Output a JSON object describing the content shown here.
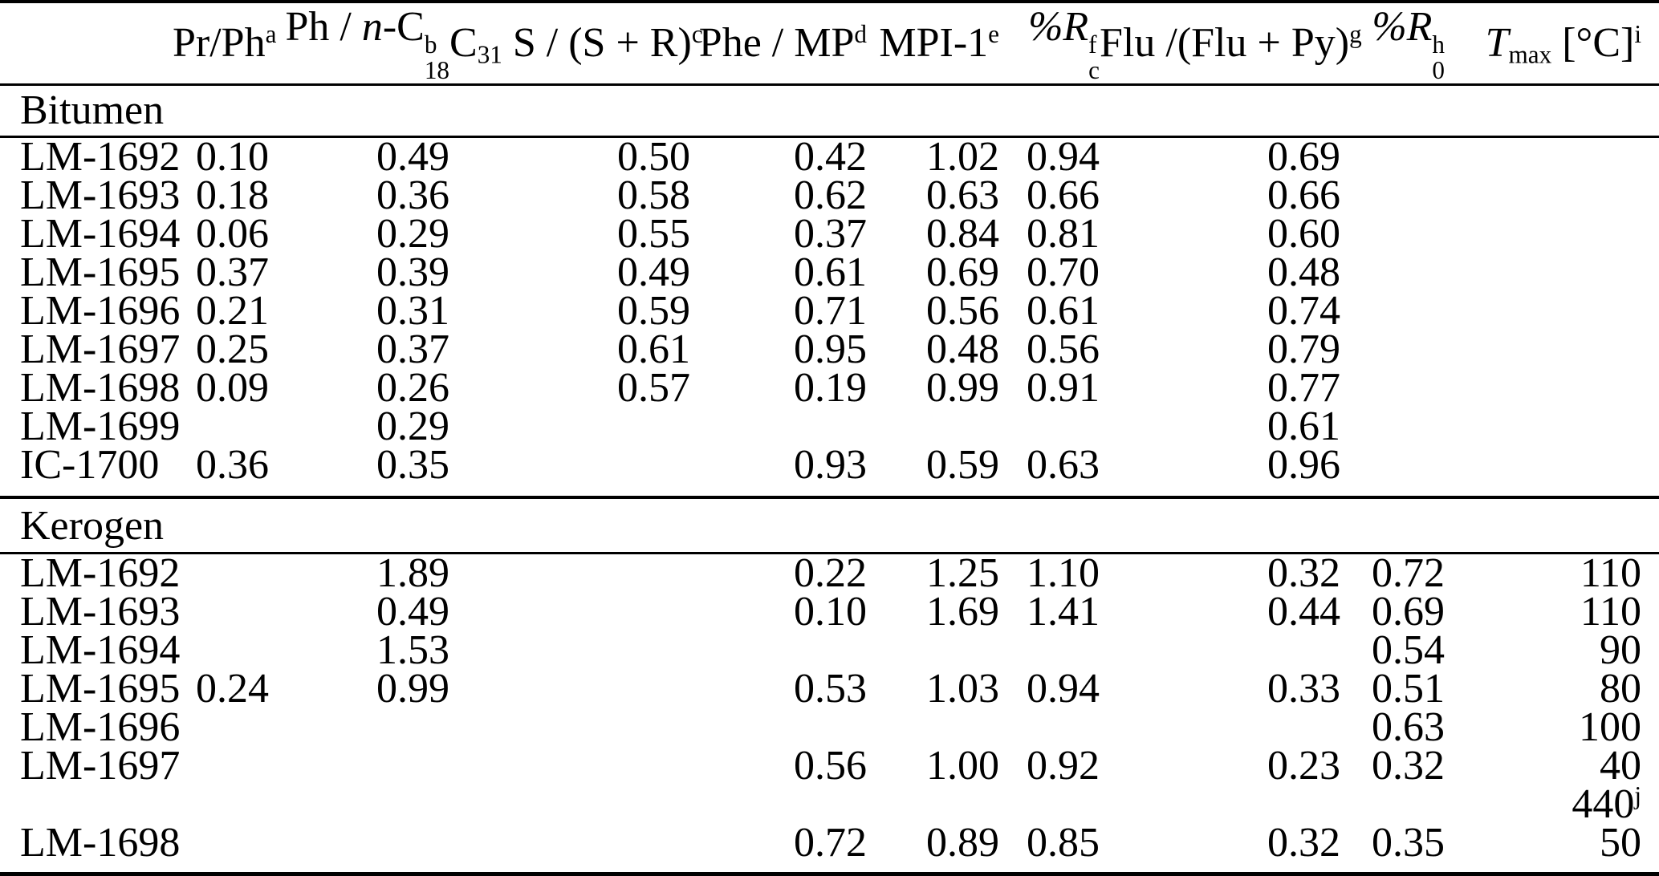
{
  "table": {
    "headers": [
      {
        "name": "sample",
        "segs": [
          {
            "t": ""
          }
        ]
      },
      {
        "name": "pr-ph",
        "segs": [
          {
            "t": "Pr/Ph"
          },
          {
            "sup": "a"
          }
        ]
      },
      {
        "name": "ph-nc18",
        "segs": [
          {
            "t": "Ph / "
          },
          {
            "i": "n"
          },
          {
            "t": "-C"
          },
          {
            "stack": {
              "sup": "b",
              "sub": "18"
            }
          }
        ]
      },
      {
        "name": "c31-s-sr",
        "segs": [
          {
            "t": "C"
          },
          {
            "sub": "31"
          },
          {
            "t": " S / (S + R)"
          },
          {
            "sup": "c"
          }
        ]
      },
      {
        "name": "phe-mp",
        "segs": [
          {
            "t": "Phe / MP"
          },
          {
            "sup": "d"
          }
        ]
      },
      {
        "name": "mpi-1",
        "segs": [
          {
            "t": "MPI-1"
          },
          {
            "sup": "e"
          }
        ]
      },
      {
        "name": "pct-rc",
        "segs": [
          {
            "i": "%R"
          },
          {
            "stack": {
              "sup": "f",
              "sub": "c"
            }
          }
        ]
      },
      {
        "name": "flu-flupy",
        "segs": [
          {
            "t": "Flu /(Flu + Py)"
          },
          {
            "sup": "g"
          }
        ]
      },
      {
        "name": "pct-r0",
        "segs": [
          {
            "i": "%R"
          },
          {
            "stack": {
              "sup": "h",
              "sub": "0"
            }
          }
        ]
      },
      {
        "name": "tmax",
        "segs": [
          {
            "i": "T"
          },
          {
            "sub": "max"
          },
          {
            "t": " [°C]"
          },
          {
            "sup": "i"
          }
        ]
      }
    ],
    "sections": [
      {
        "label": "Bitumen",
        "rows": [
          {
            "sample": "LM-1692",
            "cells": [
              "0.10",
              "0.49",
              "0.50",
              "0.42",
              "1.02",
              "0.94",
              "0.69",
              "",
              ""
            ]
          },
          {
            "sample": "LM-1693",
            "cells": [
              "0.18",
              "0.36",
              "0.58",
              "0.62",
              "0.63",
              "0.66",
              "0.66",
              "",
              ""
            ]
          },
          {
            "sample": "LM-1694",
            "cells": [
              "0.06",
              "0.29",
              "0.55",
              "0.37",
              "0.84",
              "0.81",
              "0.60",
              "",
              ""
            ]
          },
          {
            "sample": "LM-1695",
            "cells": [
              "0.37",
              "0.39",
              "0.49",
              "0.61",
              "0.69",
              "0.70",
              "0.48",
              "",
              ""
            ]
          },
          {
            "sample": "LM-1696",
            "cells": [
              "0.21",
              "0.31",
              "0.59",
              "0.71",
              "0.56",
              "0.61",
              "0.74",
              "",
              ""
            ]
          },
          {
            "sample": "LM-1697",
            "cells": [
              "0.25",
              "0.37",
              "0.61",
              "0.95",
              "0.48",
              "0.56",
              "0.79",
              "",
              ""
            ]
          },
          {
            "sample": "LM-1698",
            "cells": [
              "0.09",
              "0.26",
              "0.57",
              "0.19",
              "0.99",
              "0.91",
              "0.77",
              "",
              ""
            ]
          },
          {
            "sample": "LM-1699",
            "cells": [
              "",
              "0.29",
              "",
              "",
              "",
              "",
              "0.61",
              "",
              ""
            ]
          },
          {
            "sample": "IC-1700",
            "cells": [
              "0.36",
              "0.35",
              "",
              "0.93",
              "0.59",
              "0.63",
              "0.96",
              "",
              ""
            ]
          }
        ]
      },
      {
        "label": "Kerogen",
        "rows": [
          {
            "sample": "LM-1692",
            "cells": [
              "",
              "1.89",
              "",
              "0.22",
              "1.25",
              "1.10",
              "0.32",
              "0.72",
              "110"
            ]
          },
          {
            "sample": "LM-1693",
            "cells": [
              "",
              "0.49",
              "",
              "0.10",
              "1.69",
              "1.41",
              "0.44",
              "0.69",
              "110"
            ]
          },
          {
            "sample": "LM-1694",
            "cells": [
              "",
              "1.53",
              "",
              "",
              "",
              "",
              "",
              "0.54",
              "90"
            ]
          },
          {
            "sample": "LM-1695",
            "cells": [
              "0.24",
              "0.99",
              "",
              "0.53",
              "1.03",
              "0.94",
              "0.33",
              "0.51",
              "80"
            ]
          },
          {
            "sample": "LM-1696",
            "cells": [
              "",
              "",
              "",
              "",
              "",
              "",
              "",
              "0.63",
              "100"
            ]
          },
          {
            "sample": "LM-1697",
            "cells": [
              "",
              "",
              "",
              "0.56",
              "1.00",
              "0.92",
              "0.23",
              "0.32",
              "40"
            ]
          },
          {
            "sample": "",
            "cells": [
              "",
              "",
              "",
              "",
              "",
              "",
              "",
              "",
              "440^j"
            ]
          },
          {
            "sample": "LM-1698",
            "cells": [
              "",
              "",
              "",
              "0.72",
              "0.89",
              "0.85",
              "0.32",
              "0.35",
              "50"
            ]
          }
        ]
      }
    ]
  }
}
